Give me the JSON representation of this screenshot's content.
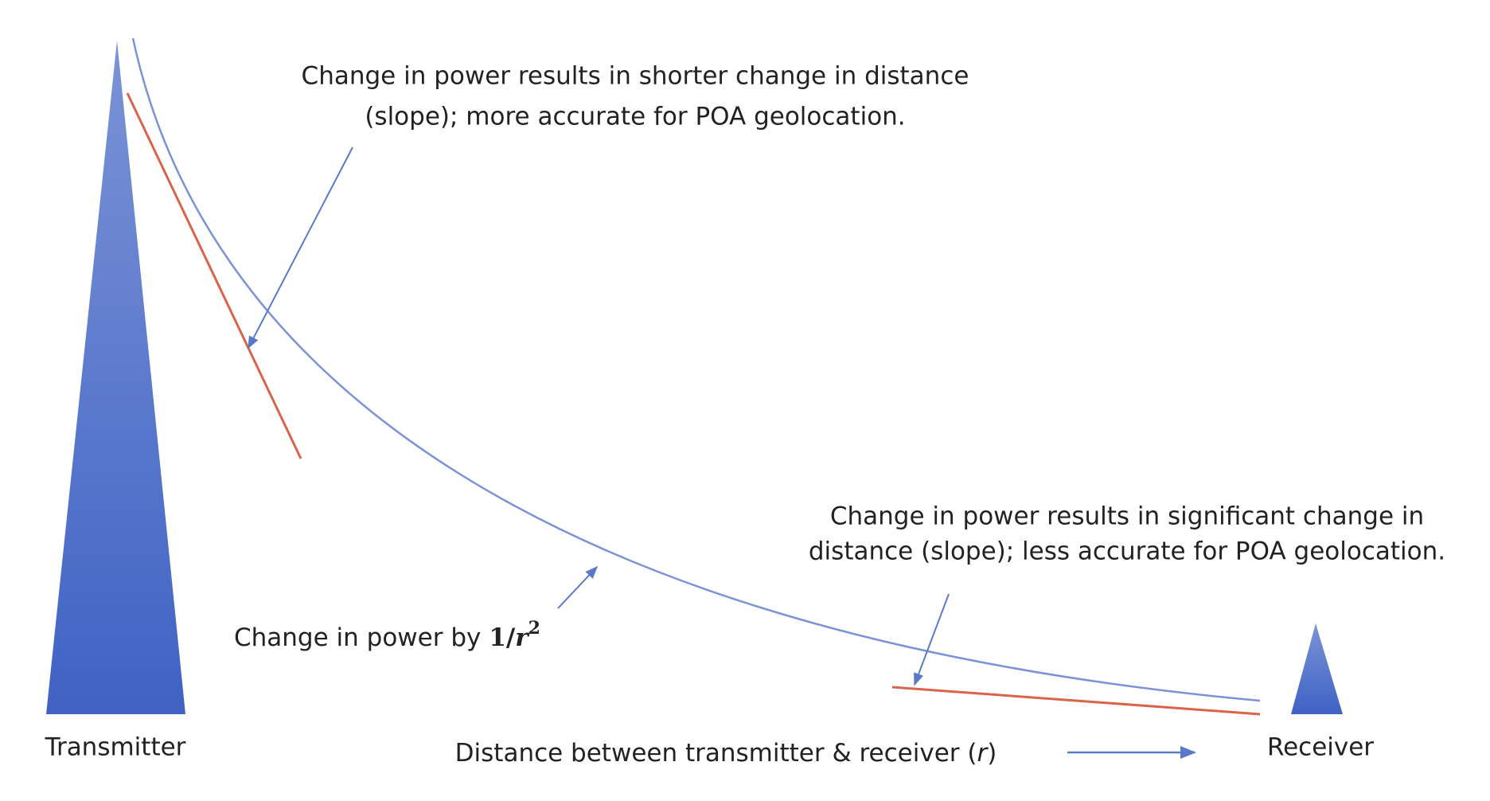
{
  "labels": {
    "transmitter": "Transmitter",
    "receiver": "Receiver"
  },
  "annotations": {
    "near": [
      "Change in power results in shorter change in distance",
      "(slope); more accurate for POA geolocation."
    ],
    "far": [
      "Change in power results in significant change in",
      "distance (slope); less accurate for POA geolocation."
    ],
    "curve": {
      "text": "Change in power by",
      "formula": [
        "1/",
        "r",
        "2"
      ]
    }
  },
  "axis": {
    "parts": [
      "Distance between transmitter & receiver (",
      "r",
      ")"
    ]
  }
}
